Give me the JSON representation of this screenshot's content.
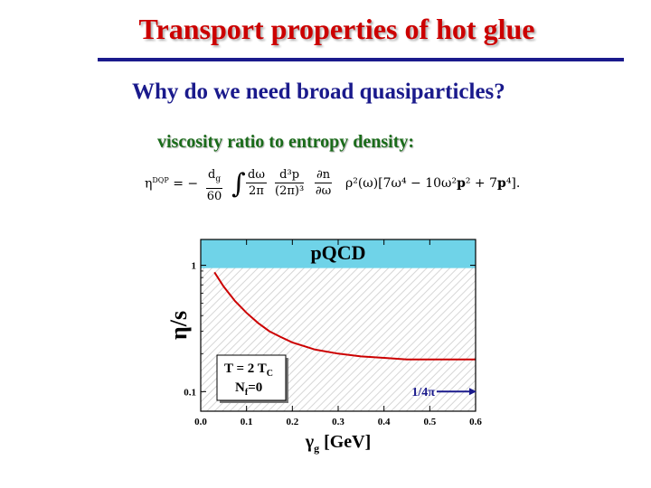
{
  "slide": {
    "title": "Transport properties of hot glue",
    "subtitle": "Why do we need broad quasiparticles?",
    "formula_label": "viscosity ratio to entropy density:"
  },
  "formula": {
    "lhs": "η",
    "lhs_sup": "DQP",
    "eq": "= −",
    "f1_num": "d",
    "f1_num_sub": "g",
    "f1_den": "60",
    "integral": "∫",
    "f2_num": "dω",
    "f2_den": "2π",
    "f3_num": "d³p",
    "f3_den": "(2π)³",
    "f4_num": "∂n",
    "f4_den": "∂ω",
    "rho": "ρ²(ω)[7ω⁴ − 10ω²",
    "p1": "p",
    "mid": "² + 7",
    "p2": "p",
    "end": "⁴]."
  },
  "chart_data": {
    "type": "line",
    "xlabel": "γ",
    "xlabel_sub": "g",
    "xlabel_unit": "[GeV]",
    "ylabel": "η/s",
    "xlim": [
      0.0,
      0.6
    ],
    "ylim": [
      0.07,
      1.6
    ],
    "yscale": "log",
    "x_ticks": [
      "0.0",
      "0.1",
      "0.2",
      "0.3",
      "0.4",
      "0.5",
      "0.6"
    ],
    "y_ticks": [
      {
        "value": 1,
        "label": "1"
      },
      {
        "value": 0.1,
        "label": "0.1"
      }
    ],
    "band_label": "pQCD",
    "band_range": [
      0.95,
      1.6
    ],
    "series": [
      {
        "color": "#cc0000",
        "x": [
          0.03,
          0.05,
          0.075,
          0.1,
          0.125,
          0.15,
          0.175,
          0.2,
          0.25,
          0.3,
          0.35,
          0.4,
          0.45,
          0.5,
          0.55,
          0.6
        ],
        "y": [
          0.88,
          0.68,
          0.52,
          0.42,
          0.35,
          0.3,
          0.27,
          0.245,
          0.215,
          0.2,
          0.19,
          0.185,
          0.18,
          0.18,
          0.18,
          0.18
        ]
      }
    ],
    "bound_label": "1/4π",
    "bound_value": 0.0796,
    "bound_arrow_x": [
      0.515,
      0.6
    ],
    "inset_line1": "T = 2 T",
    "inset_line1_sub": "C",
    "inset_line2": "N",
    "inset_line2_sub": "f",
    "inset_line2_rest": "=0",
    "colors": {
      "band": "#6fd3e8",
      "curve": "#cc0000",
      "arrow": "#1a1a8c",
      "hatch": "#c8c8c8"
    }
  }
}
